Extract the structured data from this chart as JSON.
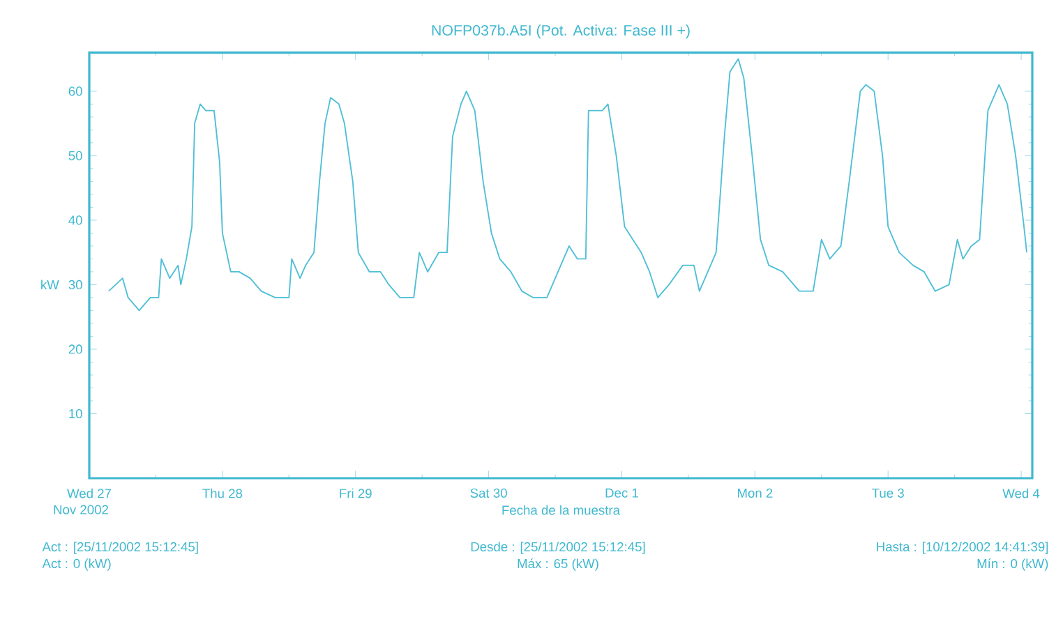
{
  "chart_data": {
    "type": "line",
    "title": "NOFP037b.A5I (Pot. Activa: Fase III +)",
    "xlabel": "Fecha de la muestra",
    "ylabel": "kW",
    "x": [
      "2002-11-27T03:30",
      "2002-11-27T06:00",
      "2002-11-27T07:00",
      "2002-11-27T09:00",
      "2002-11-27T11:00",
      "2002-11-27T12:30",
      "2002-11-27T13:00",
      "2002-11-27T14:30",
      "2002-11-27T16:00",
      "2002-11-27T16:30",
      "2002-11-27T17:30",
      "2002-11-27T18:30",
      "2002-11-27T19:00",
      "2002-11-27T20:00",
      "2002-11-27T21:00",
      "2002-11-27T22:30",
      "2002-11-27T23:30",
      "2002-11-28T00:00",
      "2002-11-28T01:30",
      "2002-11-28T03:00",
      "2002-11-28T05:00",
      "2002-11-28T07:00",
      "2002-11-28T09:30",
      "2002-11-28T12:00",
      "2002-11-28T12:30",
      "2002-11-28T14:00",
      "2002-11-28T15:00",
      "2002-11-28T16:30",
      "2002-11-28T17:30",
      "2002-11-28T18:30",
      "2002-11-28T19:30",
      "2002-11-28T21:00",
      "2002-11-28T22:00",
      "2002-11-28T23:30",
      "2002-11-29T00:30",
      "2002-11-29T02:30",
      "2002-11-29T04:30",
      "2002-11-29T06:00",
      "2002-11-29T08:00",
      "2002-11-29T10:30",
      "2002-11-29T11:30",
      "2002-11-29T13:00",
      "2002-11-29T15:00",
      "2002-11-29T16:30",
      "2002-11-29T17:30",
      "2002-11-29T19:00",
      "2002-11-29T20:00",
      "2002-11-29T21:30",
      "2002-11-29T23:00",
      "2002-11-30T00:30",
      "2002-11-30T02:00",
      "2002-11-30T04:00",
      "2002-11-30T06:00",
      "2002-11-30T08:00",
      "2002-11-30T10:30",
      "2002-11-30T12:30",
      "2002-11-30T14:30",
      "2002-11-30T16:00",
      "2002-11-30T17:30",
      "2002-11-30T18:00",
      "2002-11-30T20:30",
      "2002-11-30T21:30",
      "2002-11-30T23:00",
      "2002-12-01T00:30",
      "2002-12-01T03:30",
      "2002-12-01T05:00",
      "2002-12-01T06:30",
      "2002-12-01T08:30",
      "2002-12-01T11:00",
      "2002-12-01T13:00",
      "2002-12-01T14:00",
      "2002-12-01T15:30",
      "2002-12-01T17:00",
      "2002-12-01T18:30",
      "2002-12-01T19:30",
      "2002-12-01T21:00",
      "2002-12-01T22:00",
      "2002-12-01T23:30",
      "2002-12-02T01:00",
      "2002-12-02T02:30",
      "2002-12-02T05:00",
      "2002-12-02T08:00",
      "2002-12-02T10:30",
      "2002-12-02T12:00",
      "2002-12-02T13:30",
      "2002-12-02T15:30",
      "2002-12-02T17:00",
      "2002-12-02T19:00",
      "2002-12-02T20:00",
      "2002-12-02T21:30",
      "2002-12-02T23:00",
      "2002-12-03T00:00",
      "2002-12-03T02:00",
      "2002-12-03T04:30",
      "2002-12-03T06:30",
      "2002-12-03T08:30",
      "2002-12-03T11:00",
      "2002-12-03T12:30",
      "2002-12-03T13:30",
      "2002-12-03T15:00",
      "2002-12-03T16:30",
      "2002-12-03T18:00",
      "2002-12-03T20:00",
      "2002-12-03T21:30",
      "2002-12-03T23:00",
      "2002-12-04T00:30",
      "2002-12-04T01:00"
    ],
    "values": [
      29,
      31,
      28,
      26,
      28,
      28,
      34,
      31,
      33,
      30,
      34,
      39,
      55,
      58,
      57,
      57,
      49,
      38,
      32,
      32,
      31,
      29,
      28,
      28,
      34,
      31,
      33,
      35,
      46,
      55,
      59,
      58,
      55,
      46,
      35,
      32,
      32,
      30,
      28,
      28,
      35,
      32,
      35,
      35,
      53,
      58,
      60,
      57,
      46,
      38,
      34,
      32,
      29,
      28,
      28,
      32,
      36,
      34,
      34,
      57,
      57,
      58,
      50,
      39,
      35,
      32,
      28,
      30,
      33,
      33,
      29,
      32,
      35,
      53,
      63,
      65,
      62,
      50,
      37,
      33,
      32,
      29,
      29,
      37,
      34,
      36,
      46,
      60,
      61,
      60,
      50,
      39,
      35,
      33,
      32,
      29,
      30,
      37,
      34,
      36,
      37,
      57,
      61,
      58,
      50,
      39,
      35
    ],
    "color": "#4fbfd6",
    "marker": "none",
    "line_style": "solid",
    "grid": false,
    "xlim": [
      "2002-11-27T00:00",
      "2002-12-04T02:00"
    ],
    "xticks": [
      {
        "value": "2002-11-27",
        "label": "Wed 27"
      },
      {
        "value": "2002-11-28",
        "label": "Thu 28"
      },
      {
        "value": "2002-11-29",
        "label": "Fri 29"
      },
      {
        "value": "2002-11-30",
        "label": "Sat 30"
      },
      {
        "value": "2002-12-01",
        "label": "Dec 1"
      },
      {
        "value": "2002-12-02",
        "label": "Mon 2"
      },
      {
        "value": "2002-12-03",
        "label": "Tue 3"
      },
      {
        "value": "2002-12-04",
        "label": "Wed 4"
      }
    ],
    "ylim": [
      0,
      66
    ],
    "yticks": [
      10,
      20,
      30,
      40,
      50,
      60
    ],
    "annotations": [
      "Nov 2002",
      "Act : [25/11/2002 15:12:45]",
      "Act : 0 (kW)",
      "Desde : [25/11/2002 15:12:45]",
      "Máx : 65 (kW)",
      "Hasta : [10/12/2002 14:41:39]",
      "Mín : 0 (kW)"
    ]
  }
}
